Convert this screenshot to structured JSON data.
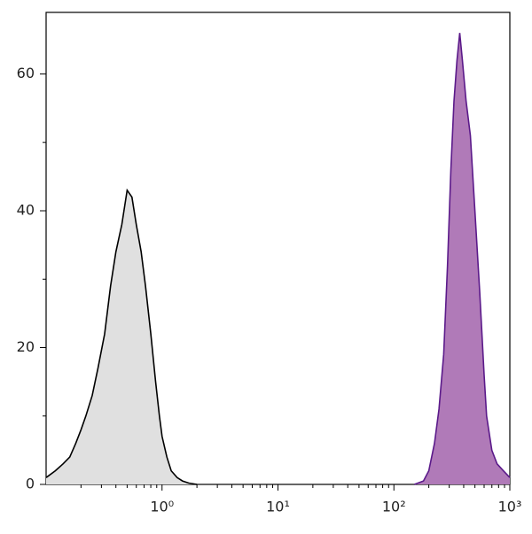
{
  "chart_data": {
    "type": "histogram-overlay",
    "xscale": "log",
    "xlim": [
      0.1,
      1000
    ],
    "ylim": [
      0,
      69
    ],
    "xticks": [
      {
        "value": 1,
        "label": "10⁰"
      },
      {
        "value": 10,
        "label": "10¹"
      },
      {
        "value": 100,
        "label": "10²"
      },
      {
        "value": 1000,
        "label": "10³"
      }
    ],
    "xminorticks": [
      0.2,
      0.3,
      0.4,
      0.5,
      0.6,
      0.7,
      0.8,
      0.9,
      2,
      3,
      4,
      5,
      6,
      7,
      8,
      9,
      20,
      30,
      40,
      50,
      60,
      70,
      80,
      90,
      200,
      300,
      400,
      500,
      600,
      700,
      800,
      900
    ],
    "yticks": [
      0,
      20,
      40,
      60
    ],
    "yminorticks": [
      10,
      30,
      50
    ],
    "series": [
      {
        "color": "#000000",
        "fill": "#e0e0e0",
        "x": [
          0.1,
          0.12,
          0.14,
          0.16,
          0.18,
          0.2,
          0.22,
          0.25,
          0.28,
          0.32,
          0.36,
          0.4,
          0.45,
          0.5,
          0.55,
          0.6,
          0.66,
          0.72,
          0.8,
          0.88,
          0.95,
          1.0,
          1.1,
          1.2,
          1.35,
          1.5,
          1.7,
          2
        ],
        "values": [
          1,
          2,
          3,
          4,
          6,
          8,
          10,
          13,
          17,
          22,
          29,
          34,
          38,
          43,
          42,
          38,
          34,
          29,
          22,
          15,
          10,
          7,
          4,
          2,
          1,
          0.5,
          0.2,
          0
        ]
      },
      {
        "color": "#5b1a8a",
        "fill": "#b07ab8",
        "x": [
          150,
          180,
          200,
          224,
          245,
          269,
          290,
          310,
          330,
          350,
          370,
          390,
          420,
          457,
          500,
          550,
          600,
          630,
          700,
          776,
          880,
          1000
        ],
        "values": [
          0,
          0.5,
          2,
          6,
          11,
          19,
          32,
          46,
          56,
          62,
          66,
          62,
          56,
          51,
          40,
          28,
          16,
          10,
          5,
          3,
          2,
          1
        ]
      }
    ]
  }
}
